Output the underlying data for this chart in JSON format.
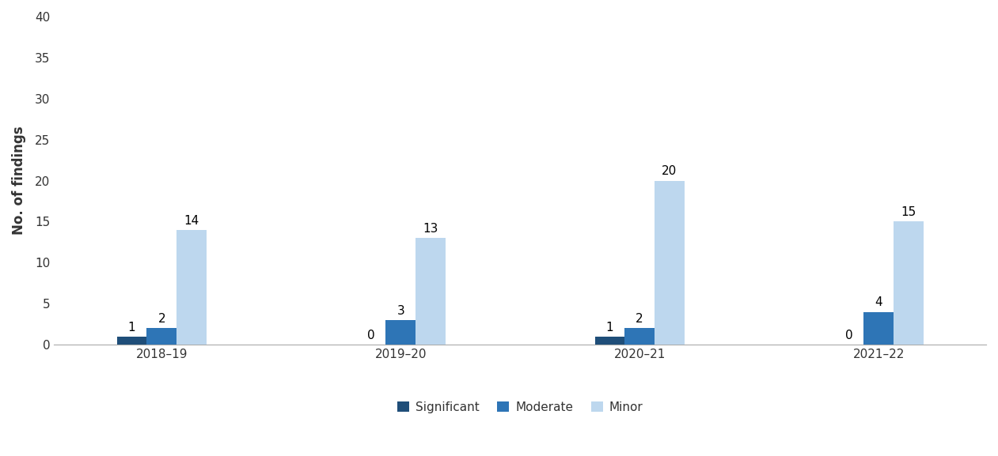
{
  "categories": [
    "2018–19",
    "2019–20",
    "2020–21",
    "2021–22"
  ],
  "series": {
    "Significant": [
      1,
      0,
      1,
      0
    ],
    "Moderate": [
      2,
      3,
      2,
      4
    ],
    "Minor": [
      14,
      13,
      20,
      15
    ]
  },
  "colors": {
    "Significant": "#1f4e79",
    "Moderate": "#2e75b6",
    "Minor": "#bdd7ee"
  },
  "ylabel": "No. of findings",
  "ylim": [
    0,
    40
  ],
  "yticks": [
    0,
    5,
    10,
    15,
    20,
    25,
    30,
    35,
    40
  ],
  "bar_width": 0.25,
  "label_fontsize": 11,
  "axis_fontsize": 12,
  "tick_fontsize": 11,
  "legend_fontsize": 11,
  "background_color": "#ffffff"
}
